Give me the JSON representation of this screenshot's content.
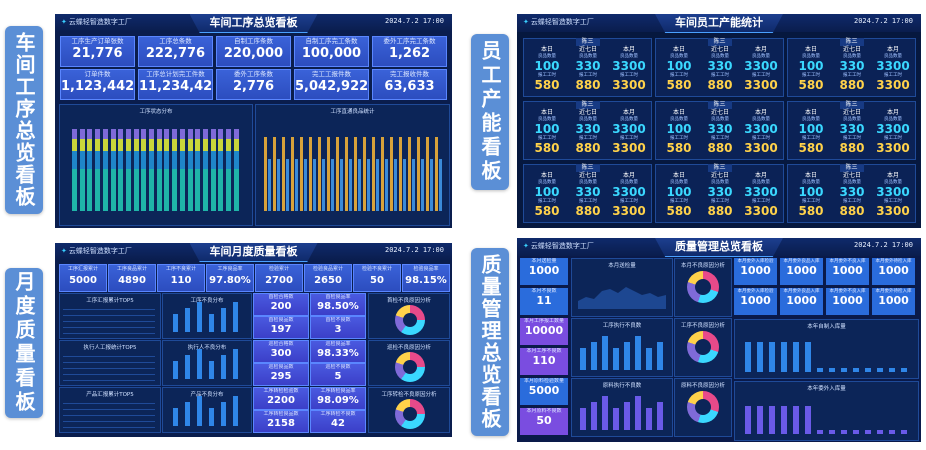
{
  "labels": {
    "l1": "车间工序总览看板",
    "l2": "员工产能看板",
    "l3": "月度质量看板",
    "l4": "质量管理总览看板"
  },
  "brand": "云蝶轻智造数字工厂",
  "time": "2024.7.2 17:00",
  "panel1": {
    "title": "车间工序总览看板",
    "kpis": [
      {
        "label": "工序生产订单张数",
        "value": "21,776"
      },
      {
        "label": "工序总条数",
        "value": "222,776"
      },
      {
        "label": "自制工序条数",
        "value": "220,000"
      },
      {
        "label": "自制工序完工条数",
        "value": "100,000"
      },
      {
        "label": "委外工序完工条数",
        "value": "1,262"
      },
      {
        "label": "订单件数",
        "value": "1,123,442"
      },
      {
        "label": "工序总计划完工件数",
        "value": "11,234,420"
      },
      {
        "label": "委外工序条数",
        "value": "2,776"
      },
      {
        "label": "完工工报件数",
        "value": "5,042,922"
      },
      {
        "label": "完工报收件数",
        "value": "63,633"
      }
    ],
    "chart_left_title": "工序状态分布",
    "chart_right_title": "工序直通良品统计"
  },
  "panel2": {
    "title": "车间员工产能统计",
    "shift_label": "陈三",
    "col_heads": [
      "本日",
      "近七日",
      "本月"
    ],
    "row1_label": "良品数量",
    "row1_values": [
      "100",
      "330",
      "3300"
    ],
    "row2_label": "报工工时",
    "row2_values": [
      "580",
      "880",
      "3300"
    ]
  },
  "panel3": {
    "title": "车间月度质量看板",
    "kpis": [
      {
        "label": "工序汇报累计",
        "value": "5000"
      },
      {
        "label": "工序良品累计",
        "value": "4890"
      },
      {
        "label": "工序不良累计",
        "value": "110"
      },
      {
        "label": "工序良品率",
        "value": "97.80%"
      },
      {
        "label": "检验累计",
        "value": "2700"
      },
      {
        "label": "检验良品累计",
        "value": "2650"
      },
      {
        "label": "检验不良累计",
        "value": "50"
      },
      {
        "label": "检验良品率",
        "value": "98.15%"
      }
    ],
    "t1": "工序汇报累计TOP5",
    "t2": "执行人工报统计TOP5",
    "t3": "产品汇报累计TOP5",
    "c1": "工序不良分布",
    "c2": "执行人不良分布",
    "c3": "产品不良分布",
    "mid": [
      {
        "label": "首检合格数",
        "value": "200"
      },
      {
        "label": "首检良品率",
        "value": "98.50%"
      },
      {
        "label": "首检良品数",
        "value": "197"
      },
      {
        "label": "首检不良数",
        "value": "3"
      },
      {
        "label": "巡检合格数",
        "value": "300"
      },
      {
        "label": "巡检良品率",
        "value": "98.33%"
      },
      {
        "label": "巡检良品数",
        "value": "295"
      },
      {
        "label": "巡检不良数",
        "value": "5"
      },
      {
        "label": "工序转检检验数",
        "value": "2200"
      },
      {
        "label": "工序转检良品率",
        "value": "98.09%"
      },
      {
        "label": "工序转检良品数",
        "value": "2158"
      },
      {
        "label": "工序转检不良数",
        "value": "42"
      }
    ],
    "d1": "首检不良原因分析",
    "d2": "巡检不良原因分析",
    "d3": "工序转检不良原因分析"
  },
  "panel4": {
    "title": "质量管理总览看板",
    "left": [
      {
        "label": "本月送检量",
        "value": "1000"
      },
      {
        "label": "本月不良数",
        "value": "11"
      },
      {
        "label": "本月工序报工数量",
        "value": "10000"
      },
      {
        "label": "本月工序不良数",
        "value": "110"
      },
      {
        "label": "本月原料检验数量",
        "value": "5000"
      },
      {
        "label": "本月原料不良数",
        "value": "50"
      }
    ],
    "right": [
      {
        "label": "本月委外入库检验",
        "value": "1000"
      },
      {
        "label": "本月委外良品入库",
        "value": "1000"
      },
      {
        "label": "本月委外不良入库",
        "value": "1000"
      },
      {
        "label": "本月委外待检入库",
        "value": "1000"
      },
      {
        "label": "本月委外入库检验",
        "value": "1000"
      },
      {
        "label": "本月委外良品入库",
        "value": "1000"
      },
      {
        "label": "本月委外不良入库",
        "value": "1000"
      },
      {
        "label": "本月委外待检入库",
        "value": "1000"
      }
    ],
    "c1": "本月送检量",
    "c2": "本月不良原因分析",
    "c3": "工序执行不良数",
    "c4": "工序不良原因分析",
    "c5": "原料执行不良数",
    "c6": "原料不良原因分析",
    "c7": "本年自制入库量",
    "c8": "本年委外入库量"
  }
}
